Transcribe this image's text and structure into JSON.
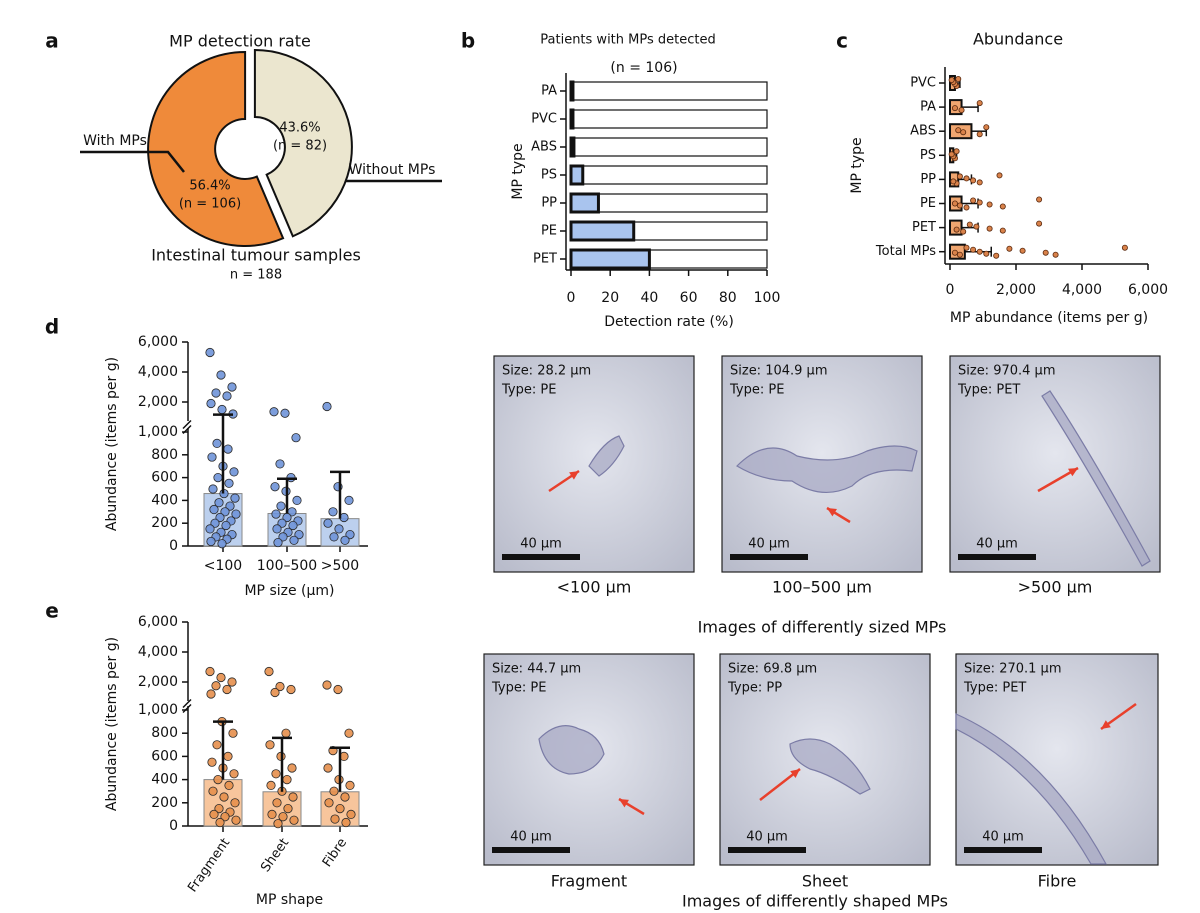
{
  "panel_labels": [
    "a",
    "b",
    "c",
    "d",
    "e"
  ],
  "chart_data": [
    {
      "type": "pie",
      "title": "MP detection rate",
      "categories": [
        "With MPs",
        "Without MPs"
      ],
      "values": [
        56.4,
        43.6
      ],
      "value_labels": [
        "56.4%",
        "43.6%"
      ],
      "count_labels": [
        "(n = 106)",
        "(n = 82)"
      ],
      "colors": [
        "#ef8a3a",
        "#ebe6cf"
      ],
      "caption": "Intestinal tumour samples",
      "sample_note": "n = 188"
    },
    {
      "type": "bar",
      "orientation": "horizontal",
      "title": "Patients with MPs detected",
      "subtitle": "(n = 106)",
      "categories": [
        "PA",
        "PVC",
        "ABS",
        "PS",
        "PP",
        "PE",
        "PET"
      ],
      "values": [
        1,
        1,
        1.5,
        6,
        14,
        32,
        40
      ],
      "color": "#a9c4ee",
      "xlim": [
        0,
        100
      ],
      "xticks": [
        0,
        20,
        40,
        60,
        80,
        100
      ],
      "xlabel": "Detection rate (%)",
      "ylabel": "MP type"
    },
    {
      "type": "bar",
      "orientation": "horizontal",
      "title": "Abundance",
      "categories": [
        "PVC",
        "PA",
        "ABS",
        "PS",
        "PP",
        "PE",
        "PET",
        "Total MPs"
      ],
      "values": [
        150,
        350,
        650,
        100,
        250,
        350,
        350,
        450
      ],
      "errors": [
        150,
        500,
        450,
        100,
        400,
        500,
        500,
        800
      ],
      "points": [
        [
          250,
          200,
          150,
          100,
          50
        ],
        [
          900,
          350,
          150
        ],
        [
          1100,
          900,
          400,
          250
        ],
        [
          200,
          150,
          100,
          50
        ],
        [
          1500,
          900,
          700,
          500,
          300,
          200,
          100
        ],
        [
          2700,
          1600,
          1200,
          900,
          700,
          500,
          300,
          150
        ],
        [
          2700,
          1600,
          1200,
          800,
          600,
          400,
          200
        ],
        [
          5300,
          3200,
          2900,
          2200,
          1800,
          1400,
          1100,
          900,
          700,
          500,
          300,
          150
        ]
      ],
      "color": "#f0a670",
      "point_color": "#d9824a",
      "xlim": [
        0,
        6000
      ],
      "xticks": [
        0,
        {
          "value": 2000,
          "label": "2,000"
        },
        {
          "value": 4000,
          "label": "4,000"
        },
        {
          "value": 6000,
          "label": "6,000"
        }
      ],
      "xlabel": "MP abundance (items per g)",
      "ylabel": "MP type"
    },
    {
      "type": "bar",
      "orientation": "vertical",
      "categories": [
        "<100",
        "100–500",
        ">500"
      ],
      "values": [
        460,
        285,
        240
      ],
      "errors": [
        700,
        305,
        410
      ],
      "points": [
        [
          5300,
          3800,
          3000,
          2600,
          2400,
          1900,
          1500,
          1200,
          900,
          850,
          780,
          700,
          650,
          600,
          550,
          500,
          460,
          420,
          380,
          350,
          320,
          300,
          280,
          250,
          220,
          200,
          180,
          150,
          120,
          100,
          80,
          60,
          40,
          20
        ],
        [
          1350,
          1250,
          950,
          720,
          600,
          520,
          480,
          400,
          350,
          300,
          280,
          250,
          220,
          200,
          180,
          150,
          120,
          100,
          80,
          50,
          30
        ],
        [
          1700,
          520,
          400,
          300,
          250,
          200,
          150,
          100,
          80,
          50
        ]
      ],
      "color": "#bcd0ee",
      "point_color": "#6f93d8",
      "ylim": [
        0,
        1000
      ],
      "yticks": [
        0,
        200,
        400,
        600,
        800,
        {
          "value": 1000,
          "label": "1,000"
        }
      ],
      "ylim_upper": [
        1000,
        6000
      ],
      "yticks_upper": [
        {
          "value": 2000,
          "label": "2,000"
        },
        {
          "value": 4000,
          "label": "4,000"
        },
        {
          "value": 6000,
          "label": "6,000"
        }
      ],
      "xlabel": "MP size (µm)",
      "ylabel": "Abundance (items per g)"
    },
    {
      "type": "bar",
      "orientation": "vertical",
      "rotate_labels": true,
      "categories": [
        "Fragment",
        "Sheet",
        "Fibre"
      ],
      "values": [
        400,
        295,
        295
      ],
      "errors": [
        500,
        465,
        380
      ],
      "points": [
        [
          2700,
          2300,
          2000,
          1750,
          1500,
          1200,
          900,
          800,
          700,
          600,
          550,
          500,
          450,
          400,
          350,
          300,
          250,
          200,
          150,
          120,
          100,
          80,
          50,
          30
        ],
        [
          2700,
          1700,
          1500,
          1300,
          800,
          700,
          600,
          500,
          450,
          400,
          350,
          300,
          250,
          200,
          150,
          100,
          80,
          50,
          20
        ],
        [
          1800,
          1500,
          800,
          650,
          600,
          500,
          400,
          350,
          300,
          250,
          200,
          150,
          100,
          60,
          30
        ]
      ],
      "color": "#f7c59c",
      "point_color": "#e58f4c",
      "ylim": [
        0,
        1000
      ],
      "yticks": [
        0,
        200,
        400,
        600,
        800,
        {
          "value": 1000,
          "label": "1,000"
        }
      ],
      "ylim_upper": [
        1000,
        6000
      ],
      "yticks_upper": [
        {
          "value": 2000,
          "label": "2,000"
        },
        {
          "value": 4000,
          "label": "4,000"
        },
        {
          "value": 6000,
          "label": "6,000"
        }
      ],
      "xlabel": "MP shape",
      "ylabel": "Abundance (items per g)"
    }
  ],
  "images": {
    "size_row": {
      "caption": "Images of differently sized MPs",
      "items": [
        {
          "size": "Size: 28.2 µm",
          "type": "Type: PE",
          "scale": "40 µm",
          "label": "<100 µm"
        },
        {
          "size": "Size: 104.9 µm",
          "type": "Type: PE",
          "scale": "40 µm",
          "label": "100–500 µm"
        },
        {
          "size": "Size: 970.4 µm",
          "type": "Type: PET",
          "scale": "40 µm",
          "label": ">500 µm"
        }
      ]
    },
    "shape_row": {
      "caption": "Images of differently shaped MPs",
      "items": [
        {
          "size": "Size: 44.7 µm",
          "type": "Type: PE",
          "scale": "40 µm",
          "label": "Fragment"
        },
        {
          "size": "Size: 69.8 µm",
          "type": "Type: PP",
          "scale": "40 µm",
          "label": "Sheet"
        },
        {
          "size": "Size: 270.1 µm",
          "type": "Type: PET",
          "scale": "40 µm",
          "label": "Fibre"
        }
      ]
    }
  }
}
